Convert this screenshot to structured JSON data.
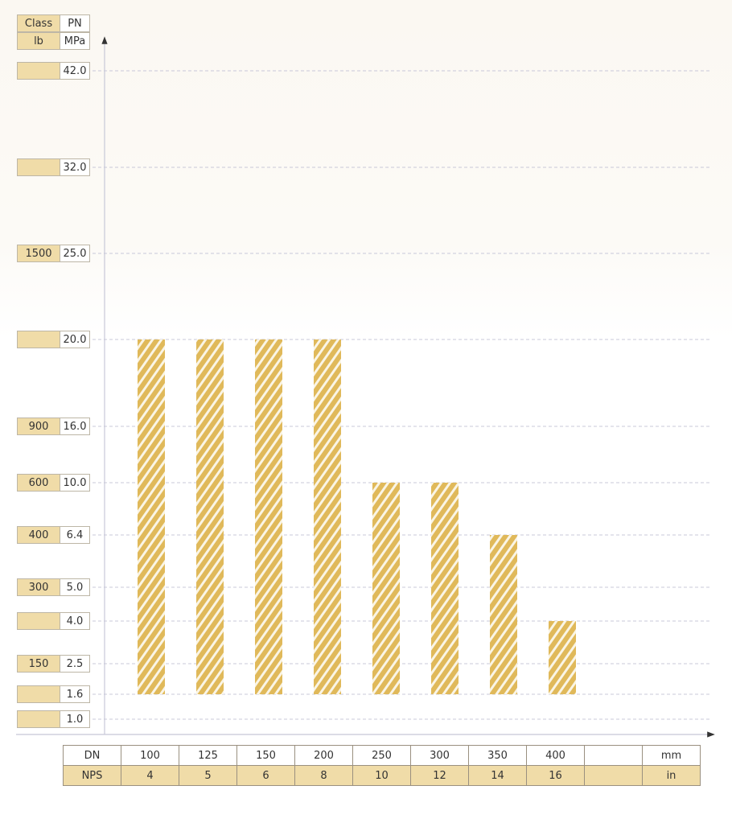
{
  "chart_data": {
    "type": "bar",
    "title": "",
    "y_header": {
      "class_label": "Class",
      "pn_label": "PN",
      "class_unit": "lb",
      "pn_unit": "MPa"
    },
    "y_levels": [
      {
        "pn": "42.0",
        "class": ""
      },
      {
        "pn": "32.0",
        "class": ""
      },
      {
        "pn": "25.0",
        "class": "1500"
      },
      {
        "pn": "20.0",
        "class": ""
      },
      {
        "pn": "16.0",
        "class": "900"
      },
      {
        "pn": "10.0",
        "class": "600"
      },
      {
        "pn": "6.4",
        "class": "400"
      },
      {
        "pn": "5.0",
        "class": "300"
      },
      {
        "pn": "4.0",
        "class": ""
      },
      {
        "pn": "2.5",
        "class": "150"
      },
      {
        "pn": "1.6",
        "class": ""
      },
      {
        "pn": "1.0",
        "class": ""
      }
    ],
    "categories": [
      "100",
      "125",
      "150",
      "200",
      "250",
      "300",
      "350",
      "400"
    ],
    "values": [
      20.0,
      20.0,
      20.0,
      20.0,
      10.0,
      10.0,
      6.4,
      4.0
    ],
    "bar_base": 1.6,
    "x_table": {
      "dn_label": "DN",
      "nps_label": "NPS",
      "dn": [
        "100",
        "125",
        "150",
        "200",
        "250",
        "300",
        "350",
        "400",
        ""
      ],
      "nps": [
        "4",
        "5",
        "6",
        "8",
        "10",
        "12",
        "14",
        "16",
        ""
      ],
      "dn_unit": "mm",
      "nps_unit": "in"
    },
    "grid": true,
    "colors": {
      "bar": "#e0b95a",
      "cell": "#f0dca8",
      "grid": "#c8c8d8"
    }
  }
}
